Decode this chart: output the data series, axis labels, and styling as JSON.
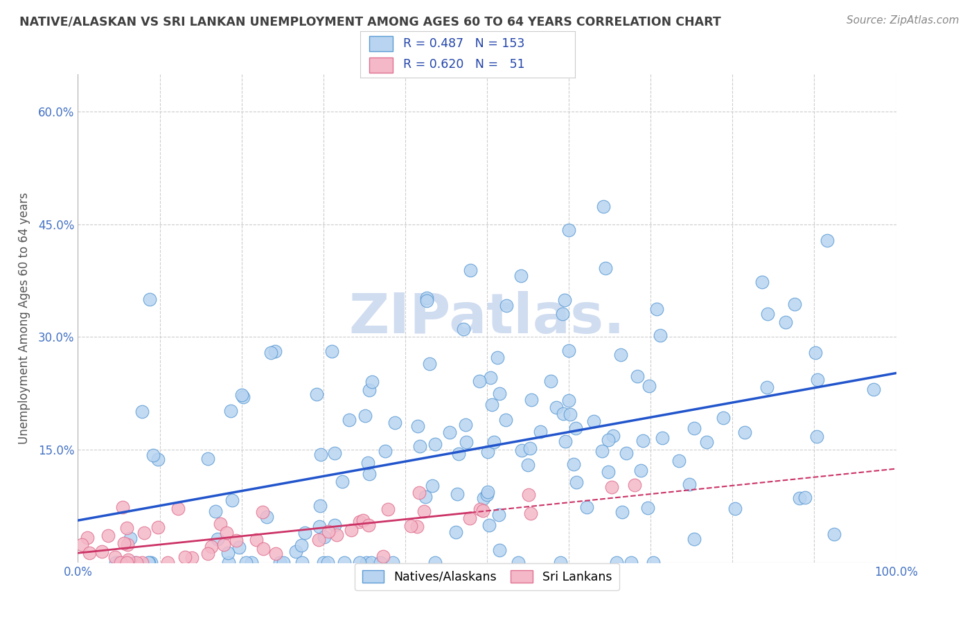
{
  "title": "NATIVE/ALASKAN VS SRI LANKAN UNEMPLOYMENT AMONG AGES 60 TO 64 YEARS CORRELATION CHART",
  "source": "Source: ZipAtlas.com",
  "ylabel": "Unemployment Among Ages 60 to 64 years",
  "xlim": [
    0.0,
    1.0
  ],
  "ylim": [
    0.0,
    0.65
  ],
  "x_ticks": [
    0.0,
    0.1,
    0.2,
    0.3,
    0.4,
    0.5,
    0.6,
    0.7,
    0.8,
    0.9,
    1.0
  ],
  "y_ticks": [
    0.0,
    0.15,
    0.3,
    0.45,
    0.6
  ],
  "blue_fill": "#B8D4F0",
  "blue_edge": "#5B9BD5",
  "pink_fill": "#F4B8C8",
  "pink_edge": "#E07090",
  "line_blue": "#2255CC",
  "line_pink": "#CC3366",
  "watermark_color": "#D0DCF0",
  "background_color": "#FFFFFF",
  "grid_color": "#CCCCCC",
  "title_color": "#404040",
  "tick_color": "#4472C4",
  "seed": 42,
  "n_blue": 153,
  "n_pink": 51,
  "R_blue": 0.487,
  "R_pink": 0.62
}
